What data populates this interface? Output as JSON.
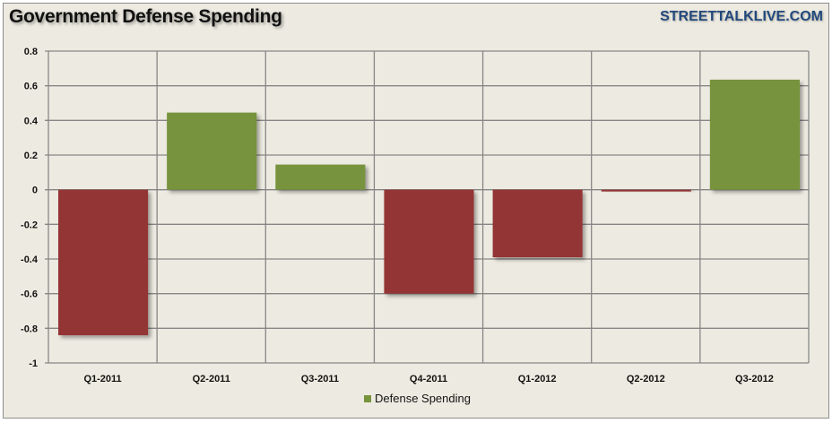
{
  "chart_data": {
    "type": "bar",
    "title": "Government Defense Spending",
    "source": "STREETTALKLIVE.COM",
    "categories": [
      "Q1-2011",
      "Q2-2011",
      "Q3-2011",
      "Q4-2011",
      "Q1-2012",
      "Q2-2012",
      "Q3-2012"
    ],
    "series": [
      {
        "name": "Defense Spending",
        "values": [
          -0.84,
          0.445,
          0.145,
          -0.6,
          -0.39,
          -0.01,
          0.635
        ]
      }
    ],
    "ylim": [
      -1,
      0.8
    ],
    "yticks": [
      0.8,
      0.6,
      0.4,
      0.2,
      0,
      -0.2,
      -0.4,
      -0.6,
      -0.8,
      -1
    ],
    "ytick_labels": [
      "0.8",
      "0.6",
      "0.4",
      "0.2",
      "0",
      "-0.2",
      "-0.4",
      "-0.6",
      "-0.8",
      "-1"
    ],
    "grid": true,
    "legend": "bottom",
    "colors": {
      "positive": "#77933C",
      "negative": "#943634"
    }
  }
}
